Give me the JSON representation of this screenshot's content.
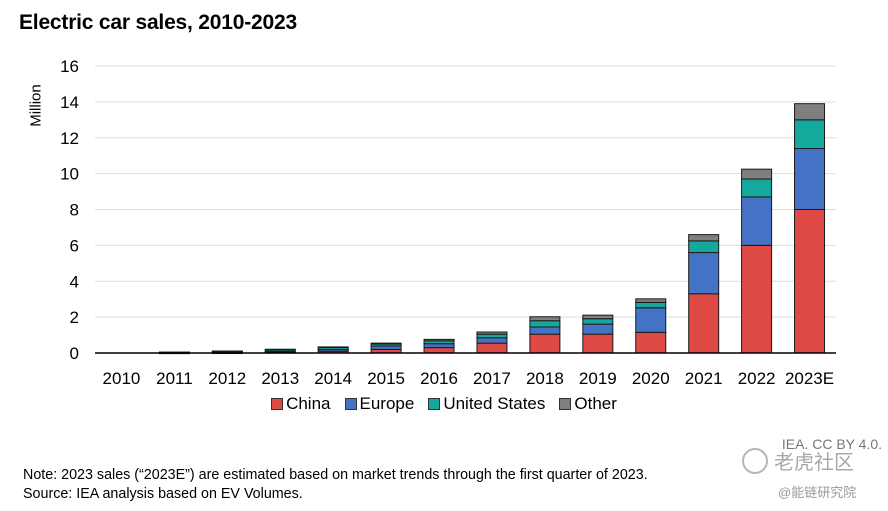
{
  "chart_data": {
    "type": "bar",
    "stacked": true,
    "title": "Electric car sales, 2010-2023",
    "ylabel": "Million",
    "xlabel": "",
    "ylim": [
      0,
      16
    ],
    "yticks": [
      0,
      2,
      4,
      6,
      8,
      10,
      12,
      14,
      16
    ],
    "grid": true,
    "legend_position": "bottom",
    "categories": [
      "2010",
      "2011",
      "2012",
      "2013",
      "2014",
      "2015",
      "2016",
      "2017",
      "2018",
      "2019",
      "2020",
      "2021",
      "2022",
      "2023E"
    ],
    "series": [
      {
        "name": "China",
        "color": "#e04a46",
        "values": [
          0.0,
          0.01,
          0.02,
          0.04,
          0.1,
          0.2,
          0.3,
          0.55,
          1.05,
          1.05,
          1.15,
          3.3,
          6.0,
          8.0
        ]
      },
      {
        "name": "Europe",
        "color": "#4472c4",
        "values": [
          0.0,
          0.01,
          0.02,
          0.05,
          0.09,
          0.19,
          0.22,
          0.3,
          0.4,
          0.56,
          1.37,
          2.3,
          2.7,
          3.4
        ]
      },
      {
        "name": "United States",
        "color": "#14a99c",
        "values": [
          0.0,
          0.02,
          0.05,
          0.09,
          0.12,
          0.11,
          0.16,
          0.2,
          0.35,
          0.3,
          0.3,
          0.65,
          1.0,
          1.6
        ]
      },
      {
        "name": "Other",
        "color": "#7f7f7f",
        "values": [
          0.0,
          0.01,
          0.02,
          0.03,
          0.03,
          0.05,
          0.08,
          0.12,
          0.22,
          0.2,
          0.2,
          0.35,
          0.55,
          0.9
        ]
      }
    ]
  },
  "credit": "IEA. CC BY 4.0.",
  "watermark": {
    "main": "老虎社区",
    "sub": "@能链研究院"
  },
  "note_line1": "Note: 2023 sales (“2023E”) are estimated based on market trends through the first quarter of 2023.",
  "note_line2": "Source: IEA analysis based on EV Volumes."
}
